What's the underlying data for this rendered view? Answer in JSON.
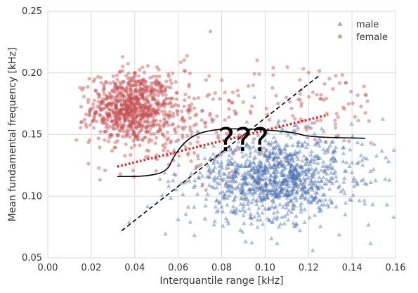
{
  "chart_data": {
    "type": "scatter",
    "xlabel": "Interquantile range [kHz]",
    "ylabel": "Mean fundamental frequency [kHz]",
    "xlim": [
      0.0,
      0.16
    ],
    "ylim": [
      0.05,
      0.25
    ],
    "x_ticks": [
      "0.00",
      "0.02",
      "0.04",
      "0.06",
      "0.08",
      "0.10",
      "0.12",
      "0.14",
      "0.16"
    ],
    "y_ticks": [
      "0.05",
      "0.10",
      "0.15",
      "0.20",
      "0.25"
    ],
    "grid": true,
    "legend_position": "top-right",
    "series": [
      {
        "name": "male",
        "marker": "triangle",
        "color": "#4c72b0",
        "clusters": [
          {
            "center": [
              0.105,
              0.115
            ],
            "spread": [
              0.014,
              0.016
            ],
            "count": 750
          },
          {
            "center": [
              0.12,
              0.12
            ],
            "spread": [
              0.022,
              0.022
            ],
            "count": 260
          },
          {
            "center": [
              0.075,
              0.11
            ],
            "spread": [
              0.014,
              0.018
            ],
            "count": 90
          }
        ]
      },
      {
        "name": "female",
        "marker": "circle",
        "color": "#c44e52",
        "clusters": [
          {
            "center": [
              0.038,
              0.172
            ],
            "spread": [
              0.009,
              0.014
            ],
            "count": 700
          },
          {
            "center": [
              0.05,
              0.165
            ],
            "spread": [
              0.015,
              0.02
            ],
            "count": 220
          },
          {
            "center": [
              0.12,
              0.175
            ],
            "spread": [
              0.02,
              0.017
            ],
            "count": 100
          },
          {
            "center": [
              0.075,
              0.15
            ],
            "spread": [
              0.02,
              0.025
            ],
            "count": 60
          }
        ]
      }
    ],
    "overlays": [
      {
        "kind": "dashed-line",
        "color": "#000000",
        "points": [
          [
            0.034,
            0.072
          ],
          [
            0.125,
            0.198
          ]
        ]
      },
      {
        "kind": "dotted-line",
        "color": "#e8201e",
        "points": [
          [
            0.032,
            0.124
          ],
          [
            0.129,
            0.166
          ]
        ]
      },
      {
        "kind": "curve",
        "color": "#000000",
        "points": [
          [
            0.032,
            0.116
          ],
          [
            0.045,
            0.116
          ],
          [
            0.055,
            0.12
          ],
          [
            0.058,
            0.133
          ],
          [
            0.065,
            0.148
          ],
          [
            0.075,
            0.154
          ],
          [
            0.09,
            0.155
          ],
          [
            0.113,
            0.152
          ],
          [
            0.12,
            0.148
          ],
          [
            0.146,
            0.147
          ]
        ]
      }
    ],
    "annotations": [
      {
        "text": "???",
        "x": 0.09,
        "y": 0.14
      }
    ]
  }
}
